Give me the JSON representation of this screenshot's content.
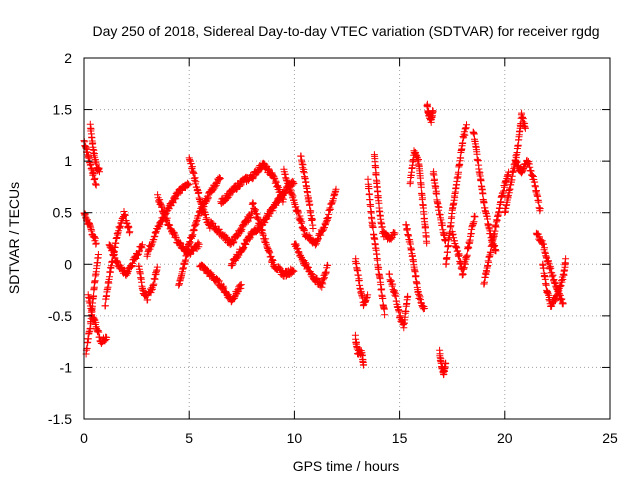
{
  "chart_data": {
    "type": "scatter",
    "title": "Day 250 of 2018, Sidereal Day-to-day VTEC variation (SDTVAR) for receiver rgdg",
    "xlabel": "GPS time / hours",
    "ylabel": "SDTVAR / TECUs",
    "xlim": [
      0,
      25
    ],
    "ylim": [
      -1.5,
      2
    ],
    "xticks": [
      0,
      5,
      10,
      15,
      20,
      25
    ],
    "yticks": [
      -1.5,
      -1,
      -0.5,
      0,
      0.5,
      1,
      1.5,
      2
    ],
    "xtick_labels": [
      "0",
      "5",
      "10",
      "15",
      "20",
      "25"
    ],
    "ytick_labels": [
      "-1.5",
      "-1",
      "-0.5",
      "0",
      "0.5",
      "1",
      "1.5",
      "2"
    ],
    "grid": true,
    "marker": "+",
    "series": [
      {
        "name": "SDTVAR",
        "color": "#ff0000",
        "tracks": [
          [
            [
              0.0,
              1.2
            ],
            [
              0.2,
              1.05
            ],
            [
              0.4,
              0.9
            ],
            [
              0.6,
              0.75
            ]
          ],
          [
            [
              0.3,
              1.35
            ],
            [
              0.45,
              1.1
            ],
            [
              0.6,
              0.95
            ],
            [
              0.75,
              0.9
            ]
          ],
          [
            [
              0.0,
              0.5
            ],
            [
              0.2,
              0.4
            ],
            [
              0.4,
              0.3
            ],
            [
              0.6,
              0.2
            ]
          ],
          [
            [
              0.2,
              -0.3
            ],
            [
              0.4,
              -0.5
            ],
            [
              0.6,
              -0.6
            ],
            [
              0.8,
              -0.75
            ],
            [
              1.1,
              -0.7
            ]
          ],
          [
            [
              0.1,
              -0.85
            ],
            [
              0.3,
              -0.6
            ],
            [
              0.5,
              -0.2
            ],
            [
              0.7,
              0.1
            ]
          ],
          [
            [
              1.0,
              -0.4
            ],
            [
              1.3,
              0.0
            ],
            [
              1.6,
              0.3
            ],
            [
              1.9,
              0.5
            ],
            [
              2.2,
              0.3
            ]
          ],
          [
            [
              1.2,
              0.2
            ],
            [
              1.6,
              0.0
            ],
            [
              2.0,
              -0.1
            ],
            [
              2.4,
              0.05
            ],
            [
              2.8,
              0.2
            ]
          ],
          [
            [
              2.6,
              0.0
            ],
            [
              2.8,
              -0.25
            ],
            [
              3.0,
              -0.33
            ],
            [
              3.3,
              -0.2
            ],
            [
              3.5,
              0.0
            ]
          ],
          [
            [
              3.0,
              0.1
            ],
            [
              3.5,
              0.35
            ],
            [
              4.0,
              0.55
            ],
            [
              4.5,
              0.7
            ],
            [
              5.0,
              0.8
            ]
          ],
          [
            [
              3.5,
              0.65
            ],
            [
              4.0,
              0.4
            ],
            [
              4.5,
              0.2
            ],
            [
              5.0,
              0.1
            ],
            [
              5.5,
              0.2
            ]
          ],
          [
            [
              4.5,
              -0.2
            ],
            [
              5.0,
              0.2
            ],
            [
              5.5,
              0.5
            ],
            [
              6.0,
              0.7
            ],
            [
              6.5,
              0.85
            ]
          ],
          [
            [
              5.0,
              1.05
            ],
            [
              5.3,
              0.8
            ],
            [
              5.6,
              0.55
            ],
            [
              6.0,
              0.35
            ]
          ],
          [
            [
              5.5,
              0.0
            ],
            [
              6.0,
              -0.1
            ],
            [
              6.5,
              -0.2
            ],
            [
              7.0,
              -0.35
            ],
            [
              7.5,
              -0.2
            ]
          ],
          [
            [
              6.0,
              0.4
            ],
            [
              6.5,
              0.3
            ],
            [
              7.0,
              0.2
            ],
            [
              7.5,
              0.35
            ],
            [
              8.0,
              0.5
            ]
          ],
          [
            [
              6.5,
              0.6
            ],
            [
              7.0,
              0.7
            ],
            [
              7.5,
              0.8
            ],
            [
              8.0,
              0.85
            ],
            [
              8.5,
              0.97
            ],
            [
              9.0,
              0.85
            ],
            [
              9.5,
              0.6
            ]
          ],
          [
            [
              7.0,
              0.0
            ],
            [
              7.5,
              0.15
            ],
            [
              8.0,
              0.3
            ],
            [
              8.5,
              0.4
            ],
            [
              9.0,
              0.55
            ],
            [
              9.5,
              0.7
            ],
            [
              10.0,
              0.8
            ]
          ],
          [
            [
              8.0,
              0.6
            ],
            [
              8.5,
              0.3
            ],
            [
              9.0,
              0.0
            ],
            [
              9.5,
              -0.1
            ],
            [
              10.0,
              -0.05
            ]
          ],
          [
            [
              9.5,
              0.9
            ],
            [
              10.0,
              0.6
            ],
            [
              10.5,
              0.3
            ],
            [
              11.0,
              0.2
            ],
            [
              11.5,
              0.4
            ],
            [
              12.0,
              0.75
            ]
          ],
          [
            [
              10.0,
              0.2
            ],
            [
              10.5,
              0.0
            ],
            [
              11.0,
              -0.15
            ],
            [
              11.3,
              -0.2
            ],
            [
              11.6,
              0.0
            ]
          ],
          [
            [
              10.3,
              1.05
            ],
            [
              10.5,
              0.85
            ],
            [
              10.7,
              0.6
            ],
            [
              10.9,
              0.35
            ]
          ],
          [
            [
              12.9,
              0.05
            ],
            [
              13.1,
              -0.2
            ],
            [
              13.3,
              -0.4
            ],
            [
              13.5,
              -0.3
            ]
          ],
          [
            [
              12.9,
              -0.7
            ],
            [
              13.0,
              -0.85
            ],
            [
              13.2,
              -0.85
            ],
            [
              13.3,
              -1.0
            ]
          ],
          [
            [
              13.5,
              0.8
            ],
            [
              13.7,
              0.4
            ],
            [
              13.9,
              0.1
            ],
            [
              14.1,
              -0.2
            ],
            [
              14.3,
              -0.5
            ]
          ],
          [
            [
              13.8,
              1.05
            ],
            [
              14.0,
              0.6
            ],
            [
              14.2,
              0.3
            ],
            [
              14.5,
              0.25
            ],
            [
              14.8,
              0.3
            ]
          ],
          [
            [
              14.5,
              -0.1
            ],
            [
              14.8,
              -0.3
            ],
            [
              15.0,
              -0.5
            ],
            [
              15.2,
              -0.6
            ],
            [
              15.4,
              -0.3
            ]
          ],
          [
            [
              15.3,
              0.4
            ],
            [
              15.6,
              0.1
            ],
            [
              15.9,
              -0.3
            ],
            [
              16.2,
              -0.45
            ]
          ],
          [
            [
              15.5,
              0.8
            ],
            [
              15.7,
              1.1
            ],
            [
              15.9,
              1.0
            ],
            [
              16.1,
              0.6
            ],
            [
              16.3,
              0.2
            ]
          ],
          [
            [
              16.3,
              1.55
            ],
            [
              16.4,
              1.45
            ],
            [
              16.5,
              1.4
            ],
            [
              16.6,
              1.5
            ]
          ],
          [
            [
              16.6,
              0.9
            ],
            [
              16.8,
              0.6
            ],
            [
              17.0,
              0.4
            ],
            [
              17.2,
              0.2
            ]
          ],
          [
            [
              16.9,
              -0.85
            ],
            [
              17.0,
              -1.0
            ],
            [
              17.1,
              -1.05
            ],
            [
              17.2,
              -0.95
            ]
          ],
          [
            [
              17.2,
              0.0
            ],
            [
              17.5,
              0.5
            ],
            [
              17.8,
              0.9
            ],
            [
              18.0,
              1.2
            ],
            [
              18.2,
              1.35
            ]
          ],
          [
            [
              17.5,
              0.3
            ],
            [
              17.8,
              0.1
            ],
            [
              18.0,
              -0.1
            ],
            [
              18.3,
              0.2
            ],
            [
              18.6,
              0.5
            ]
          ],
          [
            [
              18.5,
              1.3
            ],
            [
              18.8,
              0.9
            ],
            [
              19.0,
              0.6
            ],
            [
              19.3,
              0.3
            ],
            [
              19.6,
              0.1
            ]
          ],
          [
            [
              19.0,
              -0.2
            ],
            [
              19.3,
              0.1
            ],
            [
              19.6,
              0.4
            ],
            [
              19.9,
              0.7
            ],
            [
              20.2,
              0.9
            ]
          ],
          [
            [
              20.0,
              0.5
            ],
            [
              20.3,
              0.8
            ],
            [
              20.6,
              1.1
            ],
            [
              20.8,
              1.45
            ],
            [
              21.0,
              1.3
            ]
          ],
          [
            [
              20.5,
              1.0
            ],
            [
              20.8,
              0.9
            ],
            [
              21.1,
              1.0
            ],
            [
              21.4,
              0.8
            ],
            [
              21.7,
              0.5
            ]
          ],
          [
            [
              21.5,
              0.3
            ],
            [
              21.8,
              0.2
            ],
            [
              22.1,
              0.0
            ],
            [
              22.4,
              -0.2
            ],
            [
              22.8,
              -0.4
            ]
          ],
          [
            [
              21.8,
              0.0
            ],
            [
              22.0,
              -0.25
            ],
            [
              22.2,
              -0.4
            ],
            [
              22.5,
              -0.3
            ],
            [
              22.8,
              -0.1
            ],
            [
              22.9,
              0.05
            ]
          ]
        ]
      }
    ]
  }
}
